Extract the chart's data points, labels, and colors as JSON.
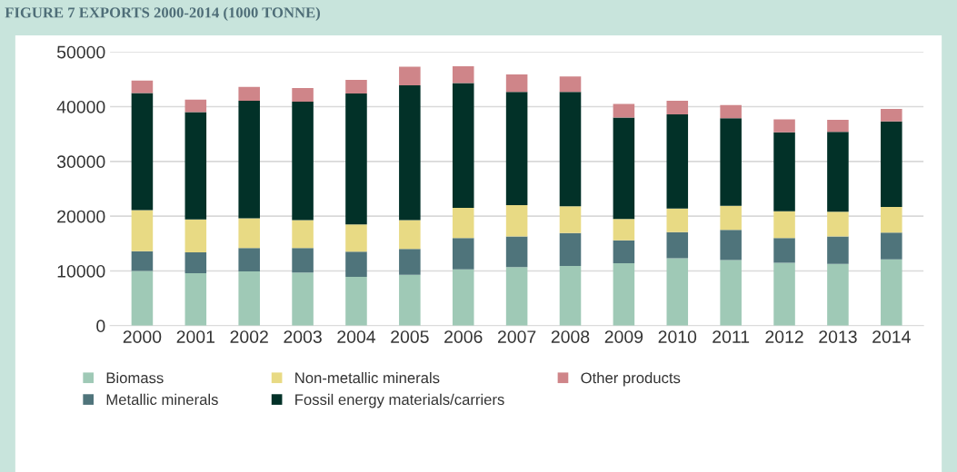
{
  "chart_data": {
    "type": "bar",
    "stacked": true,
    "title": "FIGURE 7 EXPORTS 2000-2014 (1000 TONNE)",
    "categories": [
      "2000",
      "2001",
      "2002",
      "2003",
      "2004",
      "2005",
      "2006",
      "2007",
      "2008",
      "2009",
      "2010",
      "2011",
      "2012",
      "2013",
      "2014"
    ],
    "series": [
      {
        "name": "Biomass",
        "color": "#9fc9b6",
        "values": [
          10000,
          9600,
          9900,
          9700,
          8900,
          9300,
          10300,
          10700,
          10900,
          11400,
          12300,
          12000,
          11500,
          11300,
          12100
        ]
      },
      {
        "name": "Metallic minerals",
        "color": "#4f747b",
        "values": [
          3600,
          3800,
          4300,
          4500,
          4600,
          4700,
          5700,
          5600,
          6000,
          4200,
          4800,
          5500,
          4500,
          5000,
          4900
        ]
      },
      {
        "name": "Non-metallic minerals",
        "color": "#e8da84",
        "values": [
          7500,
          6000,
          5400,
          5100,
          5000,
          5300,
          5500,
          5700,
          4900,
          3900,
          4300,
          4400,
          4900,
          4500,
          4700
        ]
      },
      {
        "name": "Fossil energy materials/carriers",
        "color": "#023128",
        "values": [
          21400,
          19600,
          21500,
          21600,
          23900,
          24600,
          22800,
          20700,
          20900,
          18500,
          17200,
          16000,
          14400,
          14600,
          15600
        ]
      },
      {
        "name": "Other products",
        "color": "#cf8589",
        "values": [
          2250,
          2300,
          2500,
          2500,
          2500,
          3400,
          3100,
          3200,
          2800,
          2500,
          2500,
          2400,
          2400,
          2200,
          2300
        ]
      }
    ],
    "ylim": [
      0,
      50000
    ],
    "yticks": [
      0,
      10000,
      20000,
      30000,
      40000,
      50000
    ],
    "grid": "y",
    "legend": "bottom"
  }
}
